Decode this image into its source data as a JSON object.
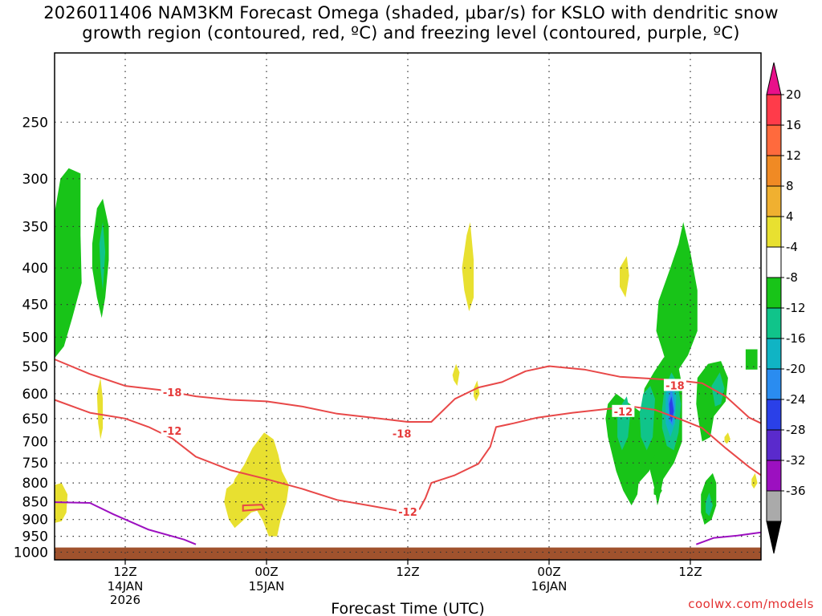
{
  "title": {
    "line1": "2026011406 NAM3KM Forecast Omega (shaded, μbar/s) for KSLO with dendritic snow",
    "line2": "growth region (contoured, red, ºC) and freezing level (contoured, purple, ºC)"
  },
  "watermark": "coolwx.com/models",
  "chart_data": {
    "type": "area",
    "title": "2026011406 NAM3KM Forecast Omega (shaded, μbar/s) for KSLO with dendritic snow growth region (contoured, red, ºC) and freezing level (contoured, purple, ºC)",
    "xlabel": "Forecast Time (UTC)",
    "ylabel": "",
    "x_ticks": [
      {
        "label": "12Z",
        "sub": [
          "14JAN",
          "2026"
        ],
        "hour": 6
      },
      {
        "label": "00Z",
        "sub": [
          "15JAN"
        ],
        "hour": 18
      },
      {
        "label": "12Z",
        "sub": [],
        "hour": 30
      },
      {
        "label": "00Z",
        "sub": [
          "16JAN"
        ],
        "hour": 42
      },
      {
        "label": "12Z",
        "sub": [],
        "hour": 54
      }
    ],
    "xlim_hours": [
      0,
      60
    ],
    "y_scale": "pressure (hPa), log",
    "ylim": [
      1025,
      200
    ],
    "y_ticks": [
      250,
      300,
      350,
      400,
      450,
      500,
      550,
      600,
      650,
      700,
      750,
      800,
      850,
      900,
      950,
      1000
    ],
    "grid": true,
    "colorbar": {
      "units": "μbar/s",
      "levels": [
        20,
        16,
        12,
        8,
        4,
        -4,
        -8,
        -12,
        -16,
        -20,
        -24,
        -28,
        -32,
        -36
      ],
      "colors": [
        "#ff3b4a",
        "#ff6a3d",
        "#f08a24",
        "#f0b030",
        "#e8e030",
        "#ffffff",
        "#18c418",
        "#10c48a",
        "#10b4c4",
        "#2a8cf0",
        "#2a40e8",
        "#5a2acc",
        "#9c10c0",
        "#aaaaaa"
      ],
      "top_arrow_color": "#e8108a",
      "bottom_arrow_color": "#000000"
    },
    "contours": [
      {
        "name": "-18",
        "color": "#e84848",
        "points": [
          [
            0,
            537
          ],
          [
            3,
            563
          ],
          [
            6,
            585
          ],
          [
            9,
            593
          ],
          [
            12,
            605
          ],
          [
            15,
            612
          ],
          [
            18,
            615
          ],
          [
            21,
            625
          ],
          [
            24,
            640
          ],
          [
            27,
            648
          ],
          [
            30,
            657
          ],
          [
            32,
            657
          ],
          [
            34,
            610
          ],
          [
            36,
            588
          ],
          [
            38,
            578
          ],
          [
            40,
            558
          ],
          [
            42,
            549
          ],
          [
            45,
            555
          ],
          [
            48,
            568
          ],
          [
            51,
            572
          ],
          [
            53,
            575
          ],
          [
            55,
            580
          ],
          [
            57,
            605
          ],
          [
            59,
            648
          ],
          [
            60,
            660
          ]
        ]
      },
      {
        "name": "-12",
        "color": "#e84848",
        "points": [
          [
            0,
            612
          ],
          [
            3,
            638
          ],
          [
            6,
            650
          ],
          [
            8,
            668
          ],
          [
            10,
            693
          ],
          [
            12,
            735
          ],
          [
            15,
            768
          ],
          [
            18,
            790
          ],
          [
            21,
            815
          ],
          [
            24,
            845
          ],
          [
            27,
            862
          ],
          [
            30,
            880
          ],
          [
            31,
            870
          ],
          [
            31.5,
            840
          ],
          [
            32,
            800
          ],
          [
            34,
            780
          ],
          [
            36,
            752
          ],
          [
            37,
            712
          ],
          [
            37.5,
            668
          ],
          [
            39,
            660
          ],
          [
            41,
            648
          ],
          [
            44,
            638
          ],
          [
            47,
            630
          ],
          [
            49,
            625
          ],
          [
            51,
            632
          ],
          [
            53,
            650
          ],
          [
            55,
            670
          ],
          [
            57,
            715
          ],
          [
            59,
            760
          ],
          [
            60,
            780
          ]
        ]
      },
      {
        "name": "freezing level",
        "color": "#9c10c0",
        "points": [
          [
            0,
            851
          ],
          [
            3,
            853
          ],
          [
            5,
            885
          ],
          [
            8,
            930
          ],
          [
            11,
            960
          ],
          [
            12,
            975
          ]
        ]
      },
      {
        "name": "freezing level 2",
        "color": "#9c10c0",
        "points": [
          [
            54.5,
            975
          ],
          [
            56,
            955
          ],
          [
            58,
            948
          ],
          [
            60,
            938
          ]
        ]
      }
    ],
    "contour_labels": [
      {
        "text": "-18",
        "hour": 10,
        "p": 597
      },
      {
        "text": "-12",
        "hour": 10,
        "p": 676
      },
      {
        "text": "-18",
        "hour": 29.5,
        "p": 682
      },
      {
        "text": "-12",
        "hour": 30,
        "p": 878
      },
      {
        "text": "-12",
        "hour": 48.3,
        "p": 635
      },
      {
        "text": "-18",
        "hour": 52.7,
        "p": 584
      }
    ]
  },
  "omega_shading": [
    {
      "color": "#18c418",
      "points": [
        [
          0,
          335
        ],
        [
          0.5,
          300
        ],
        [
          1.2,
          290
        ],
        [
          2.2,
          295
        ],
        [
          2.2,
          360
        ],
        [
          2.3,
          420
        ],
        [
          1.5,
          470
        ],
        [
          0.8,
          515
        ],
        [
          0,
          535
        ]
      ]
    },
    {
      "color": "#18c418",
      "points": [
        [
          3.2,
          370
        ],
        [
          3.6,
          330
        ],
        [
          4.1,
          320
        ],
        [
          4.6,
          350
        ],
        [
          4.6,
          390
        ],
        [
          4.3,
          440
        ],
        [
          4,
          470
        ],
        [
          3.6,
          440
        ],
        [
          3.2,
          400
        ]
      ]
    },
    {
      "color": "#10c48a",
      "points": [
        [
          3.8,
          370
        ],
        [
          4.1,
          345
        ],
        [
          4.3,
          380
        ],
        [
          4.1,
          430
        ],
        [
          3.9,
          400
        ]
      ]
    },
    {
      "color": "#18c418",
      "points": [
        [
          50.9,
          560
        ],
        [
          51.7,
          535
        ],
        [
          52.4,
          520
        ],
        [
          52.9,
          540
        ],
        [
          53.3,
          585
        ],
        [
          53.3,
          650
        ],
        [
          53.3,
          700
        ],
        [
          52.6,
          750
        ],
        [
          51.7,
          790
        ],
        [
          51.3,
          850
        ],
        [
          51.2,
          860
        ],
        [
          51,
          820
        ],
        [
          50.5,
          760
        ],
        [
          50,
          700
        ],
        [
          49.8,
          640
        ],
        [
          50.1,
          590
        ]
      ]
    },
    {
      "color": "#18c418",
      "points": [
        [
          49.7,
          635
        ],
        [
          50.5,
          600
        ],
        [
          51.3,
          585
        ],
        [
          51.6,
          650
        ],
        [
          51.1,
          720
        ],
        [
          50.5,
          770
        ],
        [
          49.6,
          800
        ],
        [
          49.5,
          830
        ],
        [
          49,
          860
        ],
        [
          48.3,
          820
        ],
        [
          47.7,
          770
        ],
        [
          47,
          690
        ],
        [
          46.8,
          650
        ],
        [
          47,
          620
        ],
        [
          47.7,
          600
        ]
      ]
    },
    {
      "color": "#18c418",
      "points": [
        [
          51.3,
          445
        ],
        [
          52.3,
          400
        ],
        [
          53,
          370
        ],
        [
          53.4,
          345
        ],
        [
          54,
          380
        ],
        [
          54.6,
          430
        ],
        [
          54.6,
          490
        ],
        [
          53.8,
          530
        ],
        [
          53,
          555
        ],
        [
          52.2,
          560
        ],
        [
          51.6,
          520
        ],
        [
          51.1,
          490
        ]
      ]
    },
    {
      "color": "#10c48a",
      "points": [
        [
          51.8,
          590
        ],
        [
          52.4,
          560
        ],
        [
          52.9,
          580
        ],
        [
          53.2,
          620
        ],
        [
          53,
          680
        ],
        [
          52.6,
          720
        ],
        [
          52,
          710
        ],
        [
          51.6,
          670
        ],
        [
          51.6,
          630
        ]
      ]
    },
    {
      "color": "#10c48a",
      "points": [
        [
          48.2,
          620
        ],
        [
          48.6,
          605
        ],
        [
          48.9,
          640
        ],
        [
          48.7,
          690
        ],
        [
          48.2,
          720
        ],
        [
          47.8,
          690
        ],
        [
          47.8,
          650
        ]
      ]
    },
    {
      "color": "#10c48a",
      "points": [
        [
          50,
          600
        ],
        [
          50.6,
          585
        ],
        [
          51,
          610
        ],
        [
          50.8,
          690
        ],
        [
          50.3,
          720
        ],
        [
          49.8,
          690
        ],
        [
          49.7,
          640
        ]
      ]
    },
    {
      "color": "#10b4c4",
      "points": [
        [
          51.9,
          600
        ],
        [
          52.4,
          575
        ],
        [
          52.8,
          605
        ],
        [
          52.7,
          660
        ],
        [
          52.3,
          690
        ],
        [
          51.9,
          660
        ]
      ]
    },
    {
      "color": "#2a8cf0",
      "points": [
        [
          52.1,
          610
        ],
        [
          52.4,
          590
        ],
        [
          52.7,
          625
        ],
        [
          52.5,
          665
        ],
        [
          52.2,
          655
        ]
      ]
    },
    {
      "color": "#2a40e8",
      "points": [
        [
          52.2,
          620
        ],
        [
          52.4,
          605
        ],
        [
          52.6,
          635
        ],
        [
          52.4,
          658
        ],
        [
          52.25,
          645
        ]
      ]
    },
    {
      "color": "#10c48a",
      "points": [
        [
          48.3,
          640
        ],
        [
          48.6,
          630
        ],
        [
          48.7,
          660
        ],
        [
          48.4,
          690
        ],
        [
          48.2,
          665
        ]
      ]
    },
    {
      "color": "#18c418",
      "points": [
        [
          54.6,
          570
        ],
        [
          55.5,
          545
        ],
        [
          56.6,
          540
        ],
        [
          57.2,
          570
        ],
        [
          57,
          615
        ],
        [
          56,
          645
        ],
        [
          55.7,
          690
        ],
        [
          55,
          700
        ],
        [
          54.7,
          655
        ],
        [
          54.5,
          620
        ]
      ]
    },
    {
      "color": "#10c48a",
      "points": [
        [
          55.8,
          585
        ],
        [
          56.5,
          560
        ],
        [
          56.9,
          590
        ],
        [
          56.6,
          620
        ],
        [
          56.1,
          625
        ]
      ]
    },
    {
      "color": "#18c418",
      "points": [
        [
          54.9,
          830
        ],
        [
          55.3,
          795
        ],
        [
          55.9,
          775
        ],
        [
          56.2,
          800
        ],
        [
          56.2,
          860
        ],
        [
          55.8,
          900
        ],
        [
          55.2,
          915
        ],
        [
          54.9,
          880
        ]
      ]
    },
    {
      "color": "#10c48a",
      "points": [
        [
          55.3,
          850
        ],
        [
          55.6,
          825
        ],
        [
          55.9,
          860
        ],
        [
          55.6,
          890
        ],
        [
          55.3,
          880
        ]
      ]
    },
    {
      "color": "#18c418",
      "points": [
        [
          50.9,
          815
        ],
        [
          51.3,
          805
        ],
        [
          51.6,
          820
        ],
        [
          51.3,
          835
        ],
        [
          50.9,
          830
        ]
      ]
    },
    {
      "color": "#18c418",
      "points": [
        [
          58.7,
          520
        ],
        [
          59.7,
          520
        ],
        [
          59.7,
          555
        ],
        [
          58.7,
          555
        ]
      ]
    },
    {
      "color": "#e8e030",
      "points": [
        [
          3.6,
          600
        ],
        [
          3.9,
          570
        ],
        [
          4.1,
          610
        ],
        [
          4.1,
          670
        ],
        [
          3.9,
          695
        ],
        [
          3.7,
          660
        ]
      ]
    },
    {
      "color": "#e8e030",
      "points": [
        [
          0,
          805
        ],
        [
          0.6,
          800
        ],
        [
          1.1,
          830
        ],
        [
          1,
          880
        ],
        [
          0.6,
          905
        ],
        [
          0,
          910
        ]
      ]
    },
    {
      "color": "#e8e030",
      "points": [
        [
          15.3,
          790
        ],
        [
          16.1,
          755
        ],
        [
          16.8,
          715
        ],
        [
          17.8,
          680
        ],
        [
          18.6,
          695
        ],
        [
          19,
          730
        ],
        [
          19.3,
          770
        ],
        [
          19.9,
          805
        ],
        [
          19.7,
          850
        ],
        [
          19.2,
          900
        ],
        [
          18.9,
          950
        ],
        [
          18.2,
          950
        ],
        [
          17.7,
          905
        ],
        [
          17.2,
          875
        ],
        [
          16.7,
          880
        ],
        [
          16.1,
          900
        ],
        [
          15.3,
          925
        ],
        [
          14.8,
          900
        ],
        [
          14.4,
          850
        ],
        [
          14.6,
          815
        ],
        [
          15.2,
          800
        ]
      ]
    },
    {
      "color": "#e8e030",
      "points": [
        [
          34.6,
          400
        ],
        [
          35,
          360
        ],
        [
          35.3,
          345
        ],
        [
          35.6,
          390
        ],
        [
          35.6,
          440
        ],
        [
          35.2,
          460
        ],
        [
          34.8,
          430
        ]
      ]
    },
    {
      "color": "#e8e030",
      "points": [
        [
          33.8,
          565
        ],
        [
          34.1,
          545
        ],
        [
          34.4,
          560
        ],
        [
          34.2,
          585
        ],
        [
          33.9,
          575
        ]
      ]
    },
    {
      "color": "#e8e030",
      "points": [
        [
          35.6,
          590
        ],
        [
          35.9,
          575
        ],
        [
          36.1,
          600
        ],
        [
          35.8,
          615
        ],
        [
          35.6,
          605
        ]
      ]
    },
    {
      "color": "#e8e030",
      "points": [
        [
          48,
          400
        ],
        [
          48.6,
          385
        ],
        [
          48.8,
          410
        ],
        [
          48.5,
          440
        ],
        [
          48,
          425
        ]
      ]
    },
    {
      "color": "#e8e030",
      "points": [
        [
          56.9,
          690
        ],
        [
          57.2,
          680
        ],
        [
          57.4,
          695
        ],
        [
          57.1,
          705
        ],
        [
          56.9,
          700
        ]
      ]
    },
    {
      "color": "#e8e030",
      "points": [
        [
          59.2,
          790
        ],
        [
          59.5,
          775
        ],
        [
          59.7,
          800
        ],
        [
          59.4,
          815
        ],
        [
          59.2,
          805
        ]
      ]
    }
  ],
  "red_closed_contour": {
    "color": "#e84848",
    "points": [
      [
        16,
        860
      ],
      [
        17.6,
        858
      ],
      [
        17.8,
        870
      ],
      [
        16,
        875
      ]
    ]
  }
}
